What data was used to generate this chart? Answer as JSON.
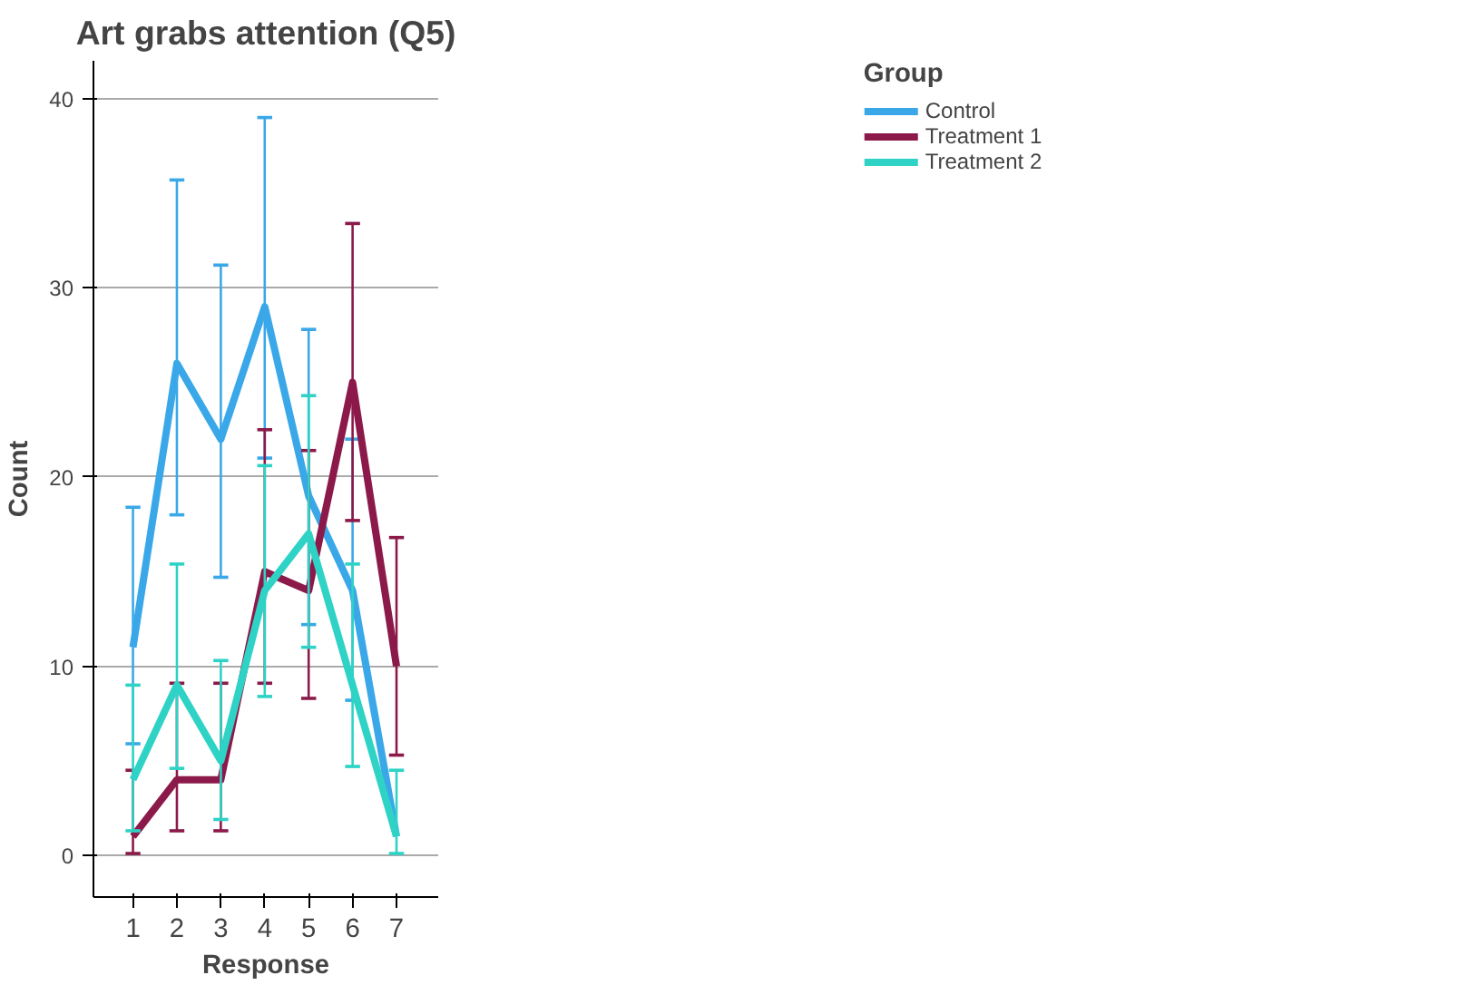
{
  "chart_data": {
    "type": "line",
    "title": "Art grabs attention (Q5)",
    "xlabel": "Response",
    "ylabel": "Count",
    "legend_title": "Group",
    "x": [
      1,
      2,
      3,
      4,
      5,
      6,
      7
    ],
    "xlim": [
      0.1,
      7.95
    ],
    "xticks": [
      1,
      2,
      3,
      4,
      5,
      6,
      7
    ],
    "ylim": [
      -2.2,
      42
    ],
    "yticks": [
      0,
      10,
      20,
      30,
      40
    ],
    "grid": "y",
    "legend": "top right",
    "marker": "none",
    "line_style": "solid",
    "series": [
      {
        "name": "Control",
        "color": "#3aa8e8",
        "values": [
          11,
          26,
          22,
          29,
          19,
          14,
          1
        ],
        "errors": [
          [
            5.9,
            18.4
          ],
          [
            18.0,
            35.7
          ],
          [
            14.7,
            31.2
          ],
          [
            21.0,
            39.0
          ],
          [
            12.2,
            27.8
          ],
          [
            8.2,
            22.0
          ],
          null
        ]
      },
      {
        "name": "Treatment 1",
        "color": "#8b1a4a",
        "values": [
          1,
          4,
          4,
          15,
          14,
          25,
          10
        ],
        "errors": [
          [
            0.1,
            4.5
          ],
          [
            1.3,
            9.1
          ],
          [
            1.3,
            9.1
          ],
          [
            9.1,
            22.5
          ],
          [
            8.3,
            21.4
          ],
          [
            17.7,
            33.4
          ],
          [
            5.3,
            16.8
          ]
        ]
      },
      {
        "name": "Treatment 2",
        "color": "#2ed3c6",
        "values": [
          4,
          9,
          5,
          14,
          17,
          9,
          1
        ],
        "errors": [
          [
            1.3,
            9.0
          ],
          [
            4.6,
            15.4
          ],
          [
            1.9,
            10.3
          ],
          [
            8.4,
            20.6
          ],
          [
            11.0,
            24.3
          ],
          [
            4.7,
            15.4
          ],
          [
            0.1,
            4.5
          ]
        ]
      }
    ]
  }
}
